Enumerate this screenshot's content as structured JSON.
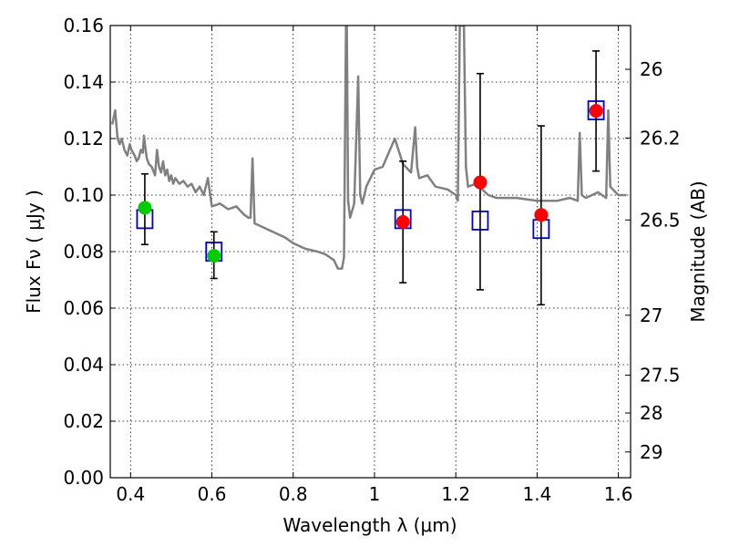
{
  "chart_data": {
    "type": "scatter",
    "x_axis": {
      "label": "Wavelength  λ (μm)",
      "range": [
        0.35,
        1.63
      ],
      "ticks": [
        0.4,
        0.6,
        0.8,
        1.0,
        1.2,
        1.4,
        1.6
      ],
      "tick_labels": [
        "0.4",
        "0.6",
        "0.8",
        "1",
        "1.2",
        "1.4",
        "1.6"
      ]
    },
    "y_axis": {
      "label": "Flux  Fν  ( μJy )",
      "range": [
        0.0,
        0.16
      ],
      "ticks": [
        0.0,
        0.02,
        0.04,
        0.06,
        0.08,
        0.1,
        0.12,
        0.14,
        0.16
      ],
      "tick_labels": [
        "0.00",
        "0.02",
        "0.04",
        "0.06",
        "0.08",
        "0.10",
        "0.12",
        "0.14",
        "0.16"
      ]
    },
    "y2_axis": {
      "label": "Magnitude (AB)",
      "tick_labels": [
        "26",
        "26.2",
        "26.5",
        "27",
        "27.5",
        "28",
        "29"
      ],
      "tick_flux": [
        0.1445,
        0.1202,
        0.0912,
        0.0575,
        0.0363,
        0.0229,
        0.0091
      ]
    },
    "grid": true,
    "series": [
      {
        "kind": "line",
        "color": "#808080",
        "x": [
          0.355,
          0.362,
          0.368,
          0.373,
          0.378,
          0.385,
          0.392,
          0.398,
          0.402,
          0.41,
          0.415,
          0.42,
          0.425,
          0.43,
          0.433,
          0.437,
          0.44,
          0.445,
          0.452,
          0.46,
          0.465,
          0.47,
          0.475,
          0.48,
          0.485,
          0.49,
          0.495,
          0.5,
          0.505,
          0.51,
          0.52,
          0.53,
          0.54,
          0.55,
          0.56,
          0.57,
          0.58,
          0.59,
          0.6,
          0.62,
          0.64,
          0.66,
          0.68,
          0.69,
          0.695,
          0.7,
          0.705,
          0.72,
          0.75,
          0.78,
          0.8,
          0.83,
          0.86,
          0.88,
          0.9,
          0.91,
          0.92,
          0.925,
          0.93,
          0.932,
          0.935,
          0.94,
          0.95,
          0.96,
          0.965,
          0.97,
          0.975,
          0.98,
          1.0,
          1.02,
          1.05,
          1.07,
          1.09,
          1.1,
          1.105,
          1.11,
          1.13,
          1.15,
          1.18,
          1.2,
          1.205,
          1.21,
          1.22,
          1.225,
          1.23,
          1.25,
          1.28,
          1.3,
          1.35,
          1.4,
          1.45,
          1.48,
          1.5,
          1.505,
          1.51,
          1.52,
          1.55,
          1.57,
          1.575,
          1.58,
          1.6,
          1.62
        ],
        "y": [
          0.125,
          0.13,
          0.12,
          0.118,
          0.12,
          0.116,
          0.114,
          0.118,
          0.116,
          0.114,
          0.112,
          0.113,
          0.116,
          0.115,
          0.121,
          0.116,
          0.113,
          0.111,
          0.11,
          0.107,
          0.116,
          0.11,
          0.108,
          0.112,
          0.107,
          0.109,
          0.105,
          0.107,
          0.104,
          0.106,
          0.104,
          0.105,
          0.103,
          0.104,
          0.101,
          0.103,
          0.1,
          0.106,
          0.096,
          0.097,
          0.095,
          0.096,
          0.093,
          0.092,
          0.092,
          0.113,
          0.09,
          0.089,
          0.087,
          0.085,
          0.083,
          0.081,
          0.08,
          0.079,
          0.077,
          0.074,
          0.074,
          0.078,
          0.16,
          0.16,
          0.098,
          0.092,
          0.097,
          0.142,
          0.1,
          0.097,
          0.1,
          0.103,
          0.109,
          0.11,
          0.12,
          0.111,
          0.108,
          0.124,
          0.11,
          0.106,
          0.107,
          0.103,
          0.102,
          0.1,
          0.098,
          0.16,
          0.16,
          0.11,
          0.103,
          0.104,
          0.1,
          0.099,
          0.099,
          0.098,
          0.098,
          0.099,
          0.098,
          0.122,
          0.1,
          0.099,
          0.101,
          0.099,
          0.13,
          0.103,
          0.1,
          0.1
        ]
      },
      {
        "kind": "open-square",
        "color": "#0000cc",
        "x": [
          0.435,
          0.605,
          1.07,
          1.26,
          1.41,
          1.545
        ],
        "y": [
          0.0915,
          0.08,
          0.0915,
          0.091,
          0.088,
          0.13
        ]
      },
      {
        "kind": "filled-circle",
        "color": "#00cc00",
        "x": [
          0.435,
          0.605
        ],
        "y": [
          0.0955,
          0.0785
        ],
        "yerr_low": [
          0.0825,
          0.0705
        ],
        "yerr_high": [
          0.1075,
          0.087
        ]
      },
      {
        "kind": "filled-circle",
        "color": "#ff0000",
        "x": [
          1.07,
          1.26,
          1.41,
          1.545
        ],
        "y": [
          0.0905,
          0.1045,
          0.093,
          0.1298
        ],
        "yerr_low": [
          0.069,
          0.0665,
          0.0612,
          0.1085
        ],
        "yerr_high": [
          0.112,
          0.143,
          0.1245,
          0.151
        ]
      }
    ]
  }
}
